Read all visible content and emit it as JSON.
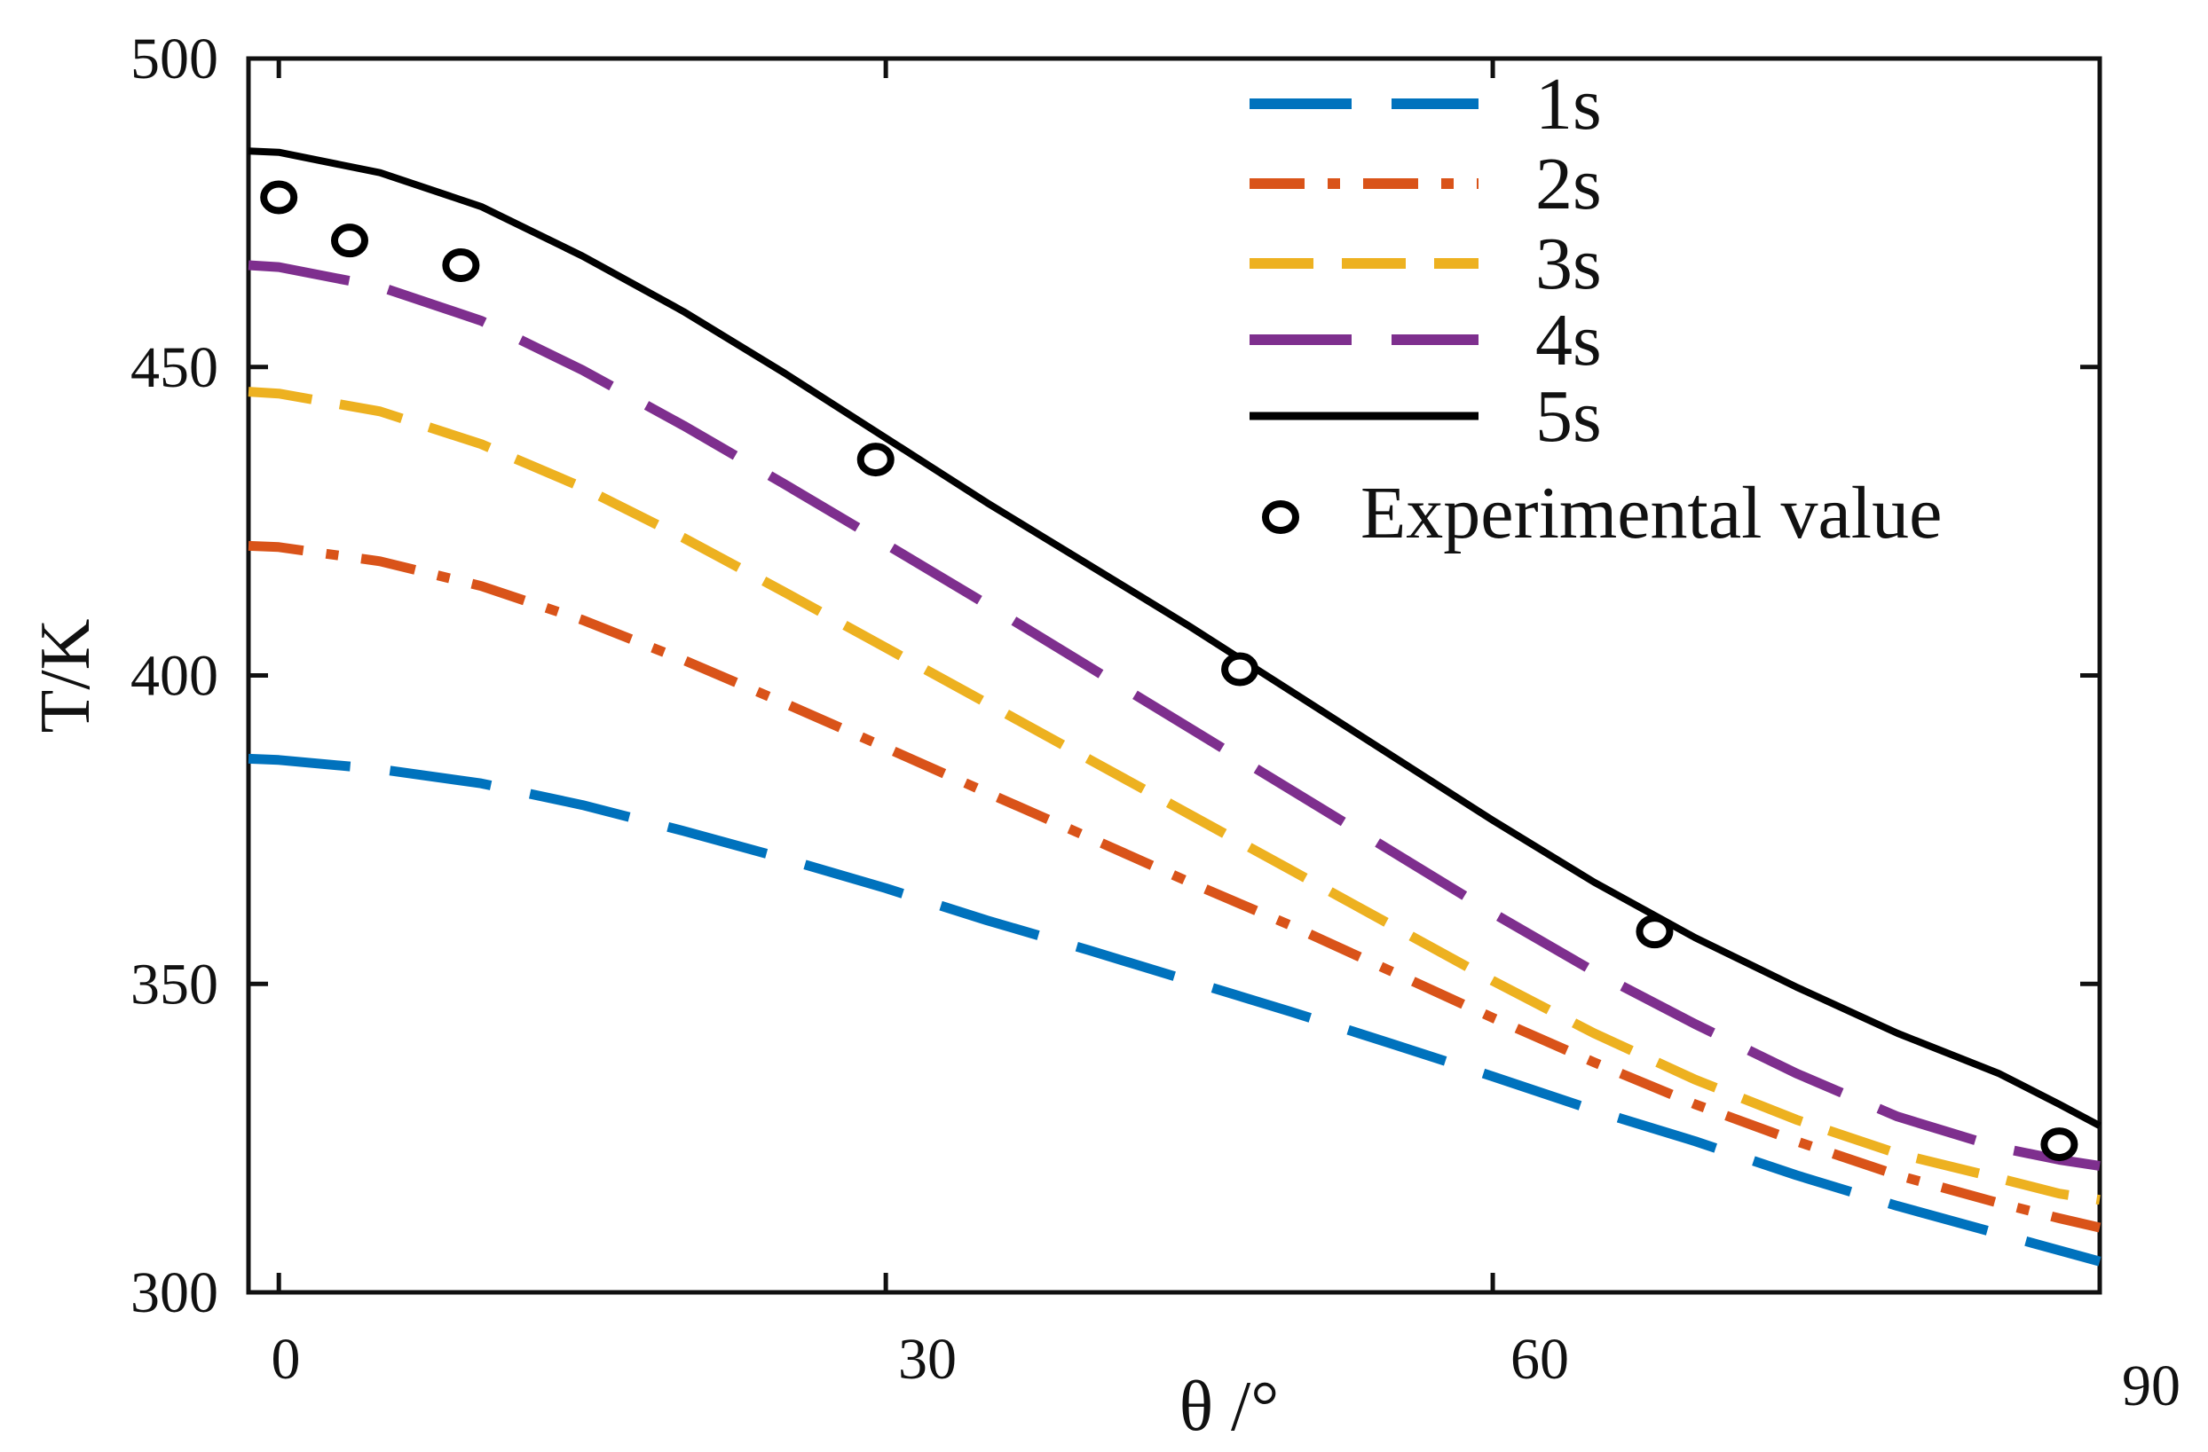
{
  "chart_data": {
    "type": "line",
    "title": "",
    "xlabel": "θ /°",
    "ylabel": "T/K",
    "xlim": [
      -1.5,
      90
    ],
    "ylim": [
      300,
      500
    ],
    "xticks": [
      0,
      30,
      60,
      90
    ],
    "yticks": [
      300,
      350,
      400,
      450,
      500
    ],
    "xtick_labels": [
      "0",
      "30",
      "60",
      "90"
    ],
    "ytick_labels": [
      "300",
      "350",
      "400",
      "450",
      "500"
    ],
    "grid": false,
    "legend_position": "top-right",
    "x": [
      -1.5,
      0,
      5,
      10,
      15,
      20,
      25,
      30,
      35,
      40,
      45,
      50,
      55,
      60,
      65,
      70,
      75,
      80,
      85,
      88,
      90
    ],
    "series": [
      {
        "name": "1s",
        "color": "#0072BD",
        "dash": "long-dash",
        "values": [
          386.5,
          386.3,
          384.8,
          382.5,
          379.0,
          374.8,
          370.3,
          365.5,
          360.3,
          355.5,
          350.5,
          345.5,
          340.3,
          335.0,
          329.5,
          324.5,
          319.0,
          314.0,
          309.5,
          306.8,
          305.0
        ]
      },
      {
        "name": "2s",
        "color": "#D95319",
        "dash": "dash-dot",
        "values": [
          421.0,
          420.8,
          418.5,
          414.5,
          409.0,
          402.5,
          395.5,
          388.3,
          381.0,
          373.8,
          366.5,
          359.5,
          352.0,
          344.5,
          337.3,
          330.5,
          324.5,
          319.0,
          314.5,
          312.0,
          310.5
        ]
      },
      {
        "name": "3s",
        "color": "#EDB120",
        "dash": "dash",
        "values": [
          446.0,
          445.7,
          442.8,
          437.5,
          430.5,
          422.3,
          413.5,
          404.5,
          395.5,
          386.5,
          377.5,
          368.5,
          359.5,
          350.5,
          342.0,
          334.5,
          328.0,
          322.5,
          318.5,
          316.0,
          315.0
        ]
      },
      {
        "name": "4s",
        "color": "#7E2F8E",
        "dash": "long-dash",
        "values": [
          466.5,
          466.2,
          463.0,
          457.5,
          449.5,
          440.5,
          431.0,
          421.3,
          411.5,
          401.5,
          391.5,
          381.5,
          371.5,
          361.5,
          352.0,
          343.5,
          335.5,
          328.5,
          323.5,
          321.5,
          320.5
        ]
      },
      {
        "name": "5s",
        "color": "#000000",
        "dash": "solid",
        "values": [
          485.0,
          484.8,
          481.5,
          476.0,
          468.0,
          459.0,
          449.0,
          438.5,
          428.0,
          418.0,
          408.0,
          397.5,
          387.0,
          376.5,
          366.5,
          357.5,
          349.5,
          342.0,
          335.5,
          330.5,
          327.0
        ]
      }
    ],
    "scatter": {
      "name": "Experimental value",
      "color": "#000000",
      "x": [
        0,
        3.5,
        9,
        29.5,
        47.5,
        68,
        88
      ],
      "y": [
        477.5,
        470.5,
        466.5,
        435.0,
        401.0,
        358.5,
        324.0
      ]
    }
  }
}
